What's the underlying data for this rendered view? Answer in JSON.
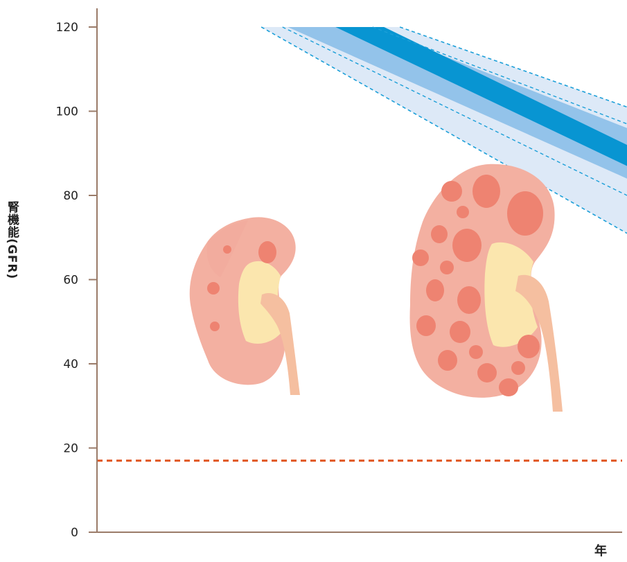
{
  "chart_data": {
    "type": "line",
    "title": "",
    "xlabel": "年",
    "ylabel": "腎機能(GFR)",
    "ylim": [
      0,
      120
    ],
    "yticks": [
      0,
      20,
      40,
      60,
      80,
      100,
      120
    ],
    "grid": false,
    "reference_lines": [
      {
        "axis": "y",
        "value": 17,
        "style": "dashed",
        "color": "#e0541e"
      }
    ],
    "bands": [
      {
        "name": "outer",
        "color": "#dde9f7",
        "border": "#1c9fd8",
        "upper": [
          [
            0.31,
            120
          ],
          [
            1.0,
            101
          ]
        ],
        "lower": [
          [
            0.31,
            120
          ],
          [
            1.0,
            71
          ]
        ]
      },
      {
        "name": "middle",
        "color": "#93c3ea",
        "upper": [
          [
            0.36,
            120
          ],
          [
            1.0,
            96
          ]
        ],
        "lower": [
          [
            0.36,
            120
          ],
          [
            1.0,
            84
          ]
        ]
      },
      {
        "name": "core",
        "color": "#0895d2",
        "upper": [
          [
            0.45,
            120
          ],
          [
            1.0,
            92
          ]
        ],
        "lower": [
          [
            0.45,
            120
          ],
          [
            1.0,
            87
          ]
        ]
      }
    ],
    "illustrations": [
      "normal-kidney",
      "polycystic-kidney"
    ]
  }
}
